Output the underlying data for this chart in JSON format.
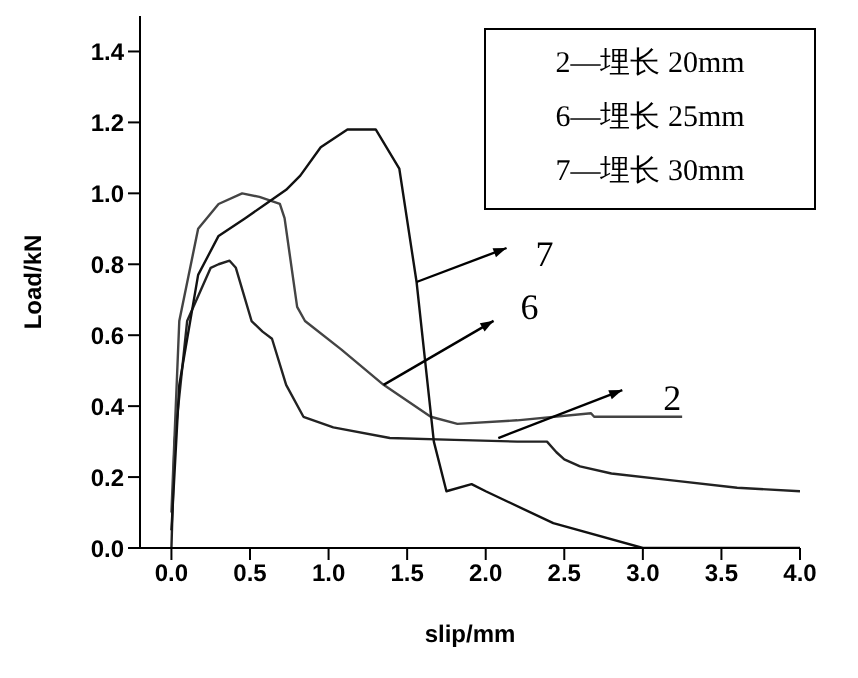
{
  "chart_data": {
    "type": "line",
    "xlabel": "slip/mm",
    "ylabel": "Load/kN",
    "xlim": [
      -0.2,
      4.0
    ],
    "ylim": [
      0,
      1.5
    ],
    "xticks": [
      {
        "value": 0,
        "label": "0.0"
      },
      {
        "value": 0.5,
        "label": "0.5"
      },
      {
        "value": 1,
        "label": "1.0"
      },
      {
        "value": 1.5,
        "label": "1.5"
      },
      {
        "value": 2,
        "label": "2.0"
      },
      {
        "value": 2.5,
        "label": "2.5"
      },
      {
        "value": 3,
        "label": "3.0"
      },
      {
        "value": 3.5,
        "label": "3.5"
      },
      {
        "value": 4,
        "label": "4.0"
      }
    ],
    "yticks": [
      {
        "value": 0,
        "label": "0.0"
      },
      {
        "value": 0.2,
        "label": "0.2"
      },
      {
        "value": 0.4,
        "label": "0.4"
      },
      {
        "value": 0.6,
        "label": "0.6"
      },
      {
        "value": 0.8,
        "label": "0.8"
      },
      {
        "value": 1,
        "label": "1.0"
      },
      {
        "value": 1.2,
        "label": "1.2"
      },
      {
        "value": 1.4,
        "label": "1.4"
      }
    ],
    "grid": false,
    "legend": false,
    "marker": "none",
    "line_style": "solid",
    "series": [
      {
        "color": "#222222",
        "x": [
          0,
          0.02,
          0.1,
          0.2,
          0.25,
          0.3,
          0.37,
          0.41,
          0.45,
          0.51,
          0.58,
          0.64,
          0.73,
          0.84,
          1.03,
          1.39,
          1.8,
          2.2,
          2.39,
          2.45,
          2.5,
          2.6,
          2.8,
          3.2,
          3.6,
          4.0
        ],
        "values": [
          0,
          0.3,
          0.64,
          0.74,
          0.79,
          0.8,
          0.81,
          0.79,
          0.73,
          0.64,
          0.61,
          0.59,
          0.46,
          0.37,
          0.34,
          0.31,
          0.305,
          0.3,
          0.3,
          0.27,
          0.25,
          0.23,
          0.21,
          0.19,
          0.17,
          0.16
        ]
      },
      {
        "color": "#444444",
        "x": [
          0,
          0.05,
          0.17,
          0.3,
          0.45,
          0.56,
          0.69,
          0.72,
          0.8,
          0.85,
          1.08,
          1.35,
          1.65,
          1.82,
          2.2,
          2.67,
          2.69,
          3.25
        ],
        "values": [
          0.1,
          0.64,
          0.9,
          0.97,
          1.0,
          0.99,
          0.97,
          0.93,
          0.68,
          0.64,
          0.56,
          0.46,
          0.37,
          0.35,
          0.36,
          0.38,
          0.37,
          0.37
        ]
      },
      {
        "color": "#111111",
        "x": [
          0,
          0.05,
          0.17,
          0.3,
          0.47,
          0.6,
          0.73,
          0.82,
          0.95,
          1.12,
          1.3,
          1.45,
          1.56,
          1.67,
          1.75,
          1.91,
          2.0,
          2.43,
          3.0,
          4.0
        ],
        "values": [
          0.05,
          0.46,
          0.77,
          0.88,
          0.93,
          0.97,
          1.01,
          1.05,
          1.13,
          1.18,
          1.18,
          1.07,
          0.75,
          0.3,
          0.16,
          0.18,
          0.16,
          0.07,
          0,
          0
        ]
      }
    ],
    "annotations": [
      "2—埋长 20mm",
      "6—埋长 25mm",
      "7—埋长 30mm",
      {
        "text": "7",
        "x": 1.56,
        "y": 0.75
      },
      {
        "text": "6",
        "x": 1.35,
        "y": 0.46
      },
      {
        "text": "2",
        "x": 2.08,
        "y": 0.31
      }
    ]
  }
}
